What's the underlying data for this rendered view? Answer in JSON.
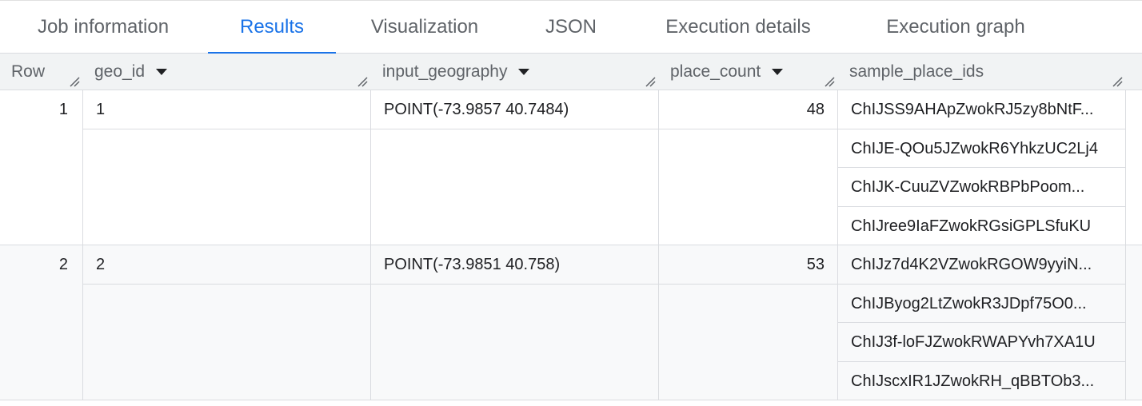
{
  "tabs": [
    {
      "label": "Job information",
      "active": false
    },
    {
      "label": "Results",
      "active": true
    },
    {
      "label": "Visualization",
      "active": false
    },
    {
      "label": "JSON",
      "active": false
    },
    {
      "label": "Execution details",
      "active": false
    },
    {
      "label": "Execution graph",
      "active": false
    }
  ],
  "accent": "#1a73e8",
  "columns": {
    "row": "Row",
    "geo_id": "geo_id",
    "input_geography": "input_geography",
    "place_count": "place_count",
    "sample_place_ids": "sample_place_ids"
  },
  "rows": [
    {
      "row": "1",
      "geo_id": "1",
      "input_geography": "POINT(-73.9857 40.7484)",
      "place_count": "48",
      "sample_place_ids": [
        "ChIJSS9AHApZwokRJ5zy8bNtF...",
        "ChIJE-QOu5JZwokR6YhkzUC2Lj4",
        "ChIJK-CuuZVZwokRBPbPoom...",
        "ChIJree9IaFZwokRGsiGPLSfuKU"
      ]
    },
    {
      "row": "2",
      "geo_id": "2",
      "input_geography": "POINT(-73.9851 40.758)",
      "place_count": "53",
      "sample_place_ids": [
        "ChIJz7d4K2VZwokRGOW9yyiN...",
        "ChIJByog2LtZwokR3JDpf75O0...",
        "ChIJ3f-loFJZwokRWAPYvh7XA1U",
        "ChIJscxIR1JZwokRH_qBBTOb3..."
      ]
    }
  ]
}
